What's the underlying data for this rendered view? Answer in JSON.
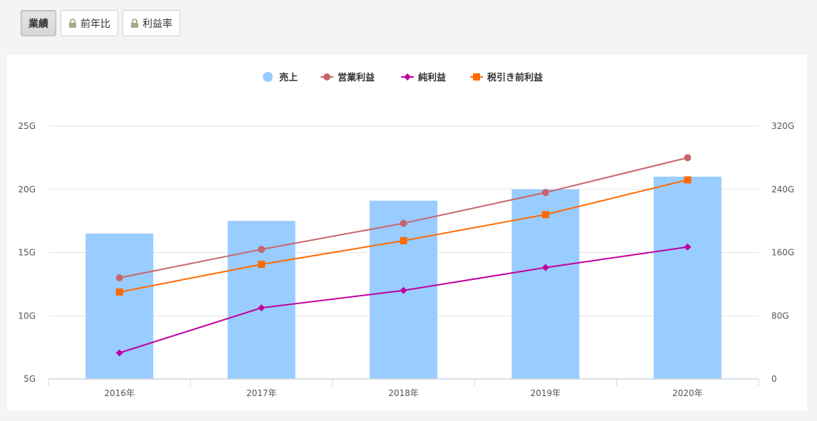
{
  "tabs": [
    {
      "label": "業績",
      "active": true,
      "locked": false
    },
    {
      "label": "前年比",
      "active": false,
      "locked": true
    },
    {
      "label": "利益率",
      "active": false,
      "locked": true
    }
  ],
  "colors": {
    "bar": "#99ccff",
    "operating": "#c8656a",
    "net": "#c000a0",
    "pretax": "#ff6a00",
    "lock": "#a8a88a"
  },
  "chart_data": {
    "type": "bar",
    "categories": [
      "2016年",
      "2017年",
      "2018年",
      "2019年",
      "2020年"
    ],
    "left_axis": {
      "ticks": [
        "5G",
        "10G",
        "15G",
        "20G",
        "25G"
      ],
      "range": [
        5,
        25
      ]
    },
    "right_axis": {
      "ticks": [
        "0",
        "80G",
        "160G",
        "240G",
        "320G"
      ],
      "range": [
        0,
        320
      ]
    },
    "series": [
      {
        "name": "売上",
        "kind": "bar",
        "axis": "left",
        "values": [
          16.5,
          17.5,
          19.1,
          20.0,
          21.0
        ],
        "marker": "circle"
      },
      {
        "name": "営業利益",
        "kind": "line",
        "axis": "right",
        "values": [
          128,
          164,
          197,
          236,
          280
        ],
        "marker": "circle"
      },
      {
        "name": "純利益",
        "kind": "line",
        "axis": "right",
        "values": [
          33,
          90,
          112,
          141,
          167
        ],
        "marker": "diamond"
      },
      {
        "name": "税引き前利益",
        "kind": "line",
        "axis": "right",
        "values": [
          110,
          145,
          175,
          208,
          252
        ],
        "marker": "square"
      }
    ],
    "legend_position": "top-center",
    "grid": true
  }
}
